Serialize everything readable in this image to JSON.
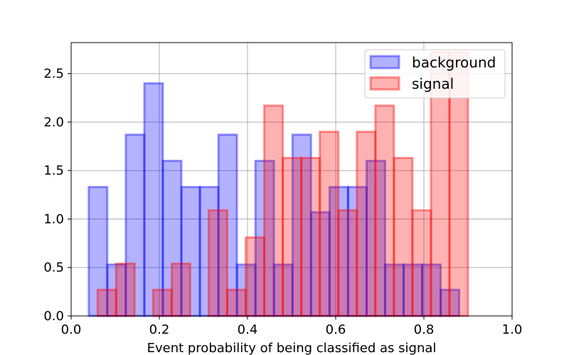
{
  "chart_data": {
    "type": "histogram",
    "xlabel": "Event probability of being classified as signal",
    "ylabel": "",
    "xlim": [
      0.0,
      1.0
    ],
    "ylim": [
      0.0,
      2.82
    ],
    "grid": true,
    "legend_position": "top-right",
    "xticks": [
      "0.0",
      "0.2",
      "0.4",
      "0.6",
      "0.8",
      "1.0"
    ],
    "yticks": [
      "0.0",
      "0.5",
      "1.0",
      "1.5",
      "2.0",
      "2.5"
    ],
    "series": [
      {
        "name": "background",
        "color": "#0000ff",
        "bins": [
          {
            "x0": 0.04,
            "x1": 0.082,
            "y": 1.33
          },
          {
            "x0": 0.082,
            "x1": 0.124,
            "y": 0.53
          },
          {
            "x0": 0.124,
            "x1": 0.166,
            "y": 1.87
          },
          {
            "x0": 0.166,
            "x1": 0.208,
            "y": 2.4
          },
          {
            "x0": 0.208,
            "x1": 0.25,
            "y": 1.6
          },
          {
            "x0": 0.25,
            "x1": 0.292,
            "y": 1.33
          },
          {
            "x0": 0.292,
            "x1": 0.334,
            "y": 1.33
          },
          {
            "x0": 0.334,
            "x1": 0.376,
            "y": 1.87
          },
          {
            "x0": 0.376,
            "x1": 0.418,
            "y": 0.53
          },
          {
            "x0": 0.418,
            "x1": 0.46,
            "y": 1.6
          },
          {
            "x0": 0.46,
            "x1": 0.502,
            "y": 0.53
          },
          {
            "x0": 0.502,
            "x1": 0.544,
            "y": 1.87
          },
          {
            "x0": 0.544,
            "x1": 0.586,
            "y": 1.07
          },
          {
            "x0": 0.586,
            "x1": 0.628,
            "y": 1.33
          },
          {
            "x0": 0.628,
            "x1": 0.67,
            "y": 1.33
          },
          {
            "x0": 0.67,
            "x1": 0.712,
            "y": 1.6
          },
          {
            "x0": 0.712,
            "x1": 0.754,
            "y": 0.53
          },
          {
            "x0": 0.754,
            "x1": 0.796,
            "y": 0.53
          },
          {
            "x0": 0.796,
            "x1": 0.838,
            "y": 0.53
          },
          {
            "x0": 0.838,
            "x1": 0.88,
            "y": 0.27
          }
        ]
      },
      {
        "name": "signal",
        "color": "#ff0000",
        "bins": [
          {
            "x0": 0.06,
            "x1": 0.102,
            "y": 0.27
          },
          {
            "x0": 0.102,
            "x1": 0.144,
            "y": 0.54
          },
          {
            "x0": 0.144,
            "x1": 0.186,
            "y": 0.0
          },
          {
            "x0": 0.186,
            "x1": 0.228,
            "y": 0.27
          },
          {
            "x0": 0.228,
            "x1": 0.27,
            "y": 0.54
          },
          {
            "x0": 0.27,
            "x1": 0.312,
            "y": 0.0
          },
          {
            "x0": 0.312,
            "x1": 0.354,
            "y": 1.09
          },
          {
            "x0": 0.354,
            "x1": 0.396,
            "y": 0.27
          },
          {
            "x0": 0.396,
            "x1": 0.438,
            "y": 0.81
          },
          {
            "x0": 0.438,
            "x1": 0.48,
            "y": 2.17
          },
          {
            "x0": 0.48,
            "x1": 0.522,
            "y": 1.63
          },
          {
            "x0": 0.522,
            "x1": 0.564,
            "y": 1.63
          },
          {
            "x0": 0.564,
            "x1": 0.606,
            "y": 1.9
          },
          {
            "x0": 0.606,
            "x1": 0.648,
            "y": 1.09
          },
          {
            "x0": 0.648,
            "x1": 0.69,
            "y": 1.9
          },
          {
            "x0": 0.69,
            "x1": 0.732,
            "y": 2.17
          },
          {
            "x0": 0.732,
            "x1": 0.774,
            "y": 1.63
          },
          {
            "x0": 0.774,
            "x1": 0.816,
            "y": 1.09
          },
          {
            "x0": 0.816,
            "x1": 0.858,
            "y": 2.72
          },
          {
            "x0": 0.858,
            "x1": 0.9,
            "y": 2.72
          }
        ]
      }
    ]
  }
}
